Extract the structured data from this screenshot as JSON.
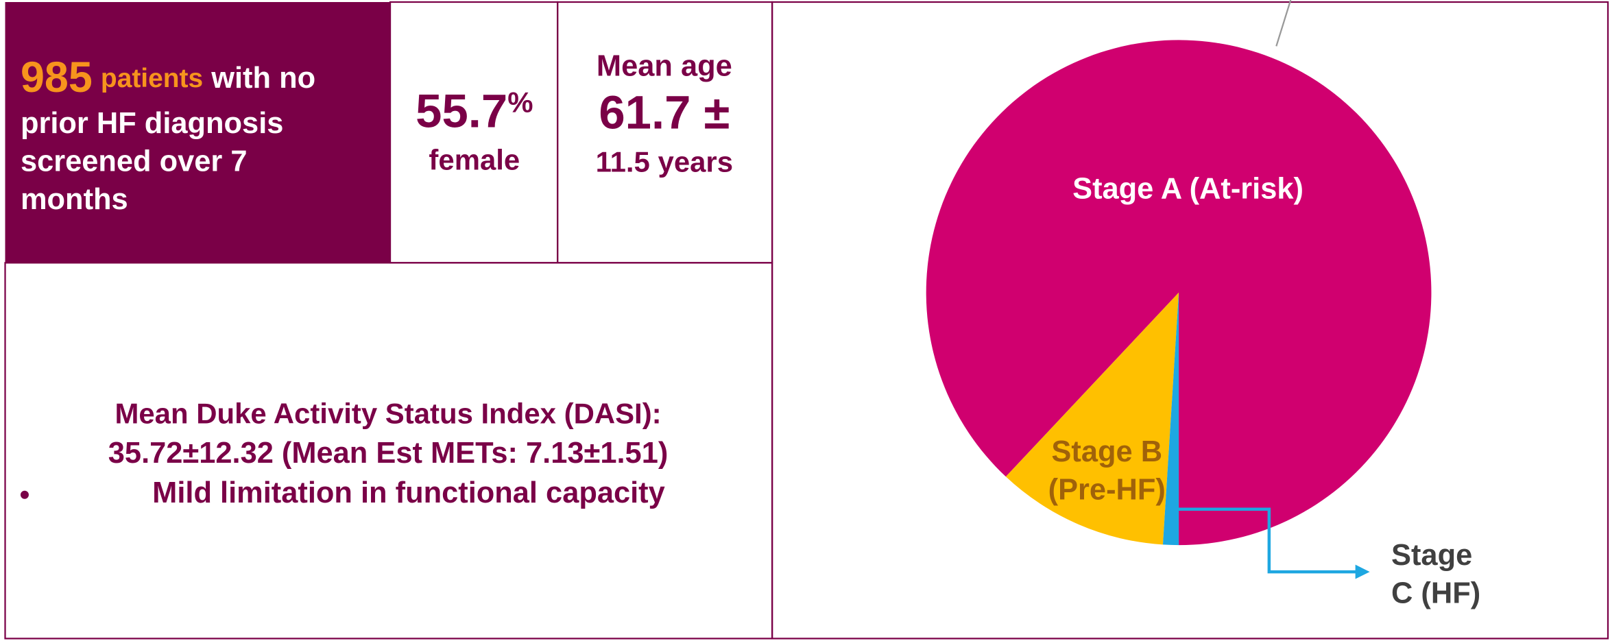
{
  "summary": {
    "count": "985",
    "count_unit": "patients",
    "description_lines": [
      "with no",
      "prior HF diagnosis",
      "screened over 7",
      "months"
    ]
  },
  "female": {
    "value": "55.7",
    "unit": "%",
    "label": "female"
  },
  "age": {
    "title": "Mean age",
    "value": "61.7 ±",
    "spread": "11.5 years"
  },
  "dasi": {
    "title": "Mean Duke Activity Status Index (DASI):",
    "value_line": "35.72±12.32 (Mean Est METs: 7.13±1.51)",
    "bullet": "Mild limitation in functional capacity"
  },
  "chart_data": {
    "type": "pie",
    "categories": [
      "Stage A (At-risk)",
      "Stage B\n(Pre-HF)",
      "Stage\nC (HF)"
    ],
    "values": [
      88,
      11,
      1
    ],
    "colors": [
      "#d0006f",
      "#ffc000",
      "#1ea7e1"
    ],
    "label_colors": [
      "#ffffff",
      "#a0620a",
      "#404040"
    ]
  }
}
